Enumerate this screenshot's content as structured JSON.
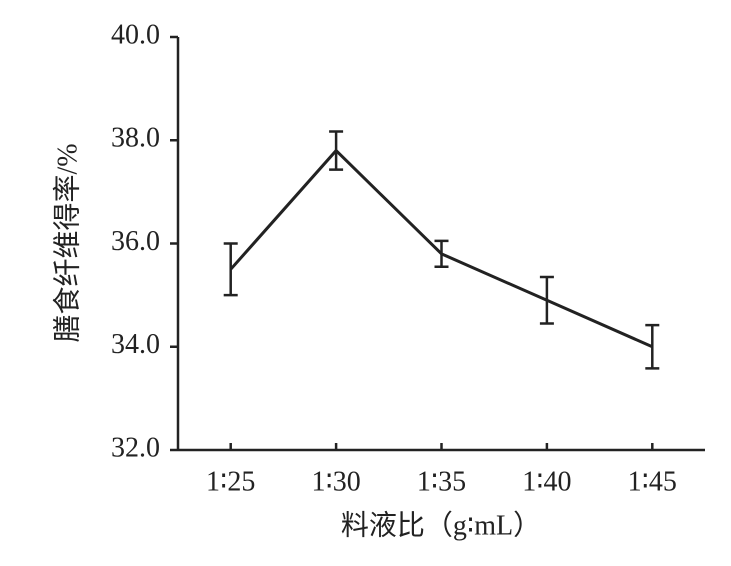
{
  "chart_data": {
    "type": "line",
    "x_label": "料液比（g∶mL）",
    "y_label": "膳食纤维得率/%",
    "categories": [
      "1∶25",
      "1∶30",
      "1∶35",
      "1∶40",
      "1∶45"
    ],
    "values": [
      35.5,
      37.8,
      35.8,
      34.9,
      34.0
    ],
    "errors": [
      0.5,
      0.37,
      0.25,
      0.45,
      0.42
    ],
    "color": "#222222",
    "ylim": [
      32,
      40
    ],
    "yticks": [
      {
        "value": 32,
        "label": "32.0"
      },
      {
        "value": 34,
        "label": "34.0"
      },
      {
        "value": 36,
        "label": "36.0"
      },
      {
        "value": 38,
        "label": "38.0"
      },
      {
        "value": 40,
        "label": "40.0"
      }
    ],
    "grid": false
  }
}
